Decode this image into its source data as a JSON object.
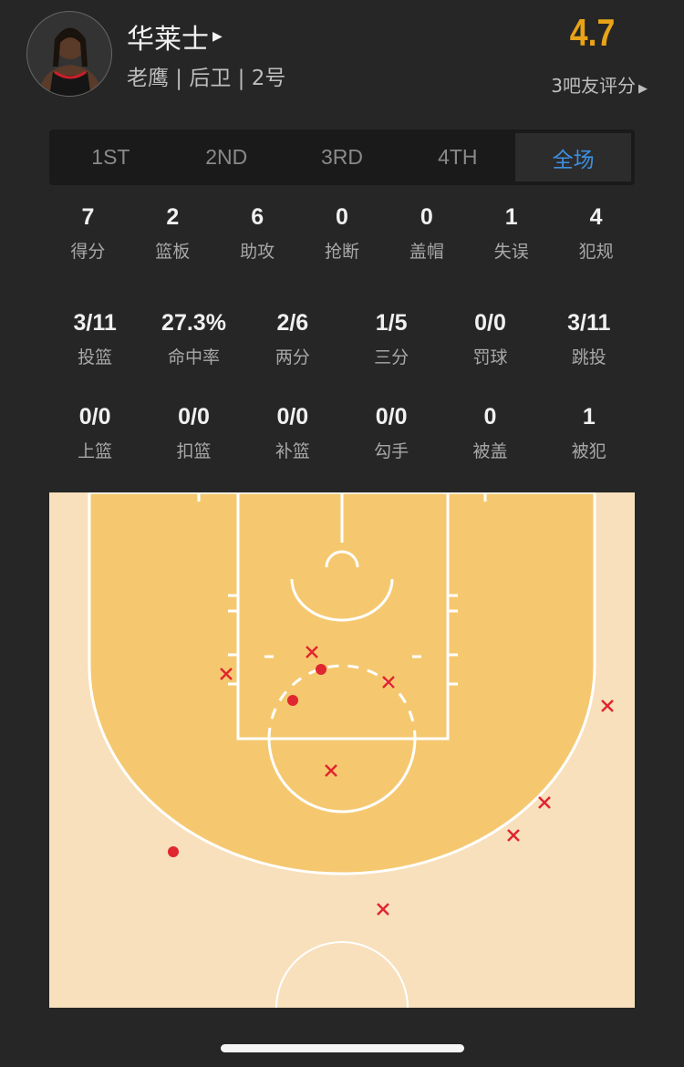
{
  "player": {
    "name": "华莱士",
    "info": "老鹰 | 后卫 | 2号",
    "rating": "4.7",
    "rating_label": "3吧友评分"
  },
  "tabs": [
    {
      "label": "1ST"
    },
    {
      "label": "2ND"
    },
    {
      "label": "3RD"
    },
    {
      "label": "4TH"
    },
    {
      "label": "全场",
      "active": true
    }
  ],
  "basic": [
    {
      "v": "7",
      "l": "得分"
    },
    {
      "v": "2",
      "l": "篮板"
    },
    {
      "v": "6",
      "l": "助攻"
    },
    {
      "v": "0",
      "l": "抢断"
    },
    {
      "v": "0",
      "l": "盖帽"
    },
    {
      "v": "1",
      "l": "失误"
    },
    {
      "v": "4",
      "l": "犯规"
    }
  ],
  "shooting": [
    {
      "v": "3/11",
      "l": "投篮"
    },
    {
      "v": "27.3%",
      "l": "命中率"
    },
    {
      "v": "2/6",
      "l": "两分"
    },
    {
      "v": "1/5",
      "l": "三分"
    },
    {
      "v": "0/0",
      "l": "罚球"
    },
    {
      "v": "3/11",
      "l": "跳投"
    }
  ],
  "shot_types": [
    {
      "v": "0/0",
      "l": "上篮"
    },
    {
      "v": "0/0",
      "l": "扣篮"
    },
    {
      "v": "0/0",
      "l": "补篮"
    },
    {
      "v": "0/0",
      "l": "勾手"
    },
    {
      "v": "0",
      "l": "被盖"
    },
    {
      "v": "1",
      "l": "被犯"
    }
  ],
  "shot_chart": {
    "made": 3,
    "missed": 8,
    "colors": {
      "shot": "#e0262f",
      "paint": "#f5c870",
      "court": "#f8e0bc",
      "accent": "#3d8fe0",
      "rating": "#e8a317"
    }
  }
}
